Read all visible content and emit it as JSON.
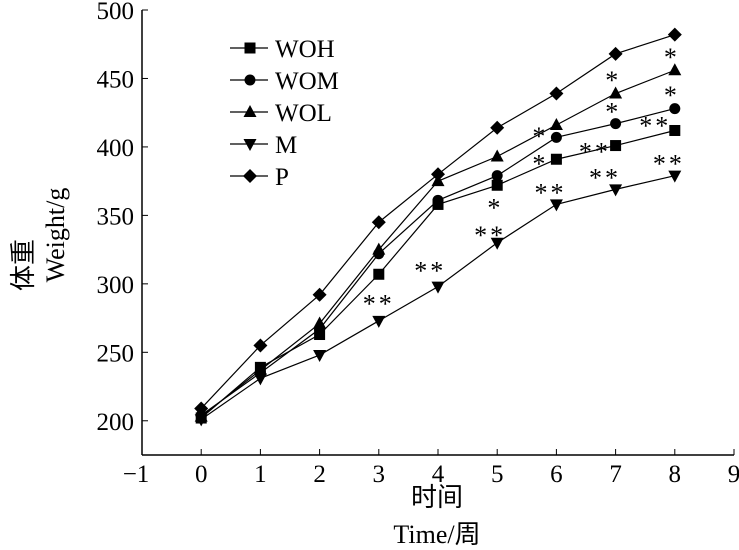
{
  "chart_data": {
    "type": "line",
    "title": "",
    "xlabel_cn": "时间",
    "xlabel": "Time/周",
    "ylabel_cn": "体重",
    "ylabel": "Weight/g",
    "xlim": [
      -1,
      9
    ],
    "ylim": [
      175,
      500
    ],
    "xticks": [
      -1,
      0,
      1,
      2,
      3,
      4,
      5,
      6,
      7,
      8,
      9
    ],
    "yticks": [
      200,
      250,
      300,
      350,
      400,
      450,
      500
    ],
    "grid": false,
    "legend_position": "top-left",
    "x": [
      0,
      1,
      2,
      3,
      4,
      5,
      6,
      7,
      8
    ],
    "series": [
      {
        "name": "WOH",
        "marker": "square",
        "values": [
          202,
          239,
          263,
          307,
          358,
          372,
          391,
          401,
          412
        ]
      },
      {
        "name": "WOM",
        "marker": "circle",
        "values": [
          204,
          235,
          267,
          322,
          361,
          379,
          407,
          417,
          428
        ]
      },
      {
        "name": "WOL",
        "marker": "triangle-up",
        "values": [
          203,
          237,
          271,
          325,
          375,
          393,
          416,
          439,
          456
        ]
      },
      {
        "name": "M",
        "marker": "triangle-down",
        "values": [
          201,
          231,
          248,
          273,
          298,
          330,
          358,
          369,
          379
        ]
      },
      {
        "name": "P",
        "marker": "diamond",
        "values": [
          209,
          255,
          292,
          345,
          380,
          414,
          439,
          468,
          482
        ]
      }
    ],
    "annotations": [
      {
        "text": "**",
        "x": 3.0,
        "y": 288
      },
      {
        "text": "**",
        "x": 3.87,
        "y": 312
      },
      {
        "text": "**",
        "x": 4.88,
        "y": 338
      },
      {
        "text": "*",
        "x": 4.97,
        "y": 358
      },
      {
        "text": "**",
        "x": 5.9,
        "y": 369
      },
      {
        "text": "*",
        "x": 5.73,
        "y": 390
      },
      {
        "text": "*",
        "x": 5.73,
        "y": 410
      },
      {
        "text": "**",
        "x": 6.65,
        "y": 399
      },
      {
        "text": "**",
        "x": 6.82,
        "y": 380
      },
      {
        "text": "*",
        "x": 6.96,
        "y": 428
      },
      {
        "text": "*",
        "x": 6.96,
        "y": 451
      },
      {
        "text": "**",
        "x": 7.67,
        "y": 418
      },
      {
        "text": "**",
        "x": 7.9,
        "y": 390
      },
      {
        "text": "*",
        "x": 7.95,
        "y": 440
      },
      {
        "text": "*",
        "x": 7.95,
        "y": 468
      }
    ]
  }
}
